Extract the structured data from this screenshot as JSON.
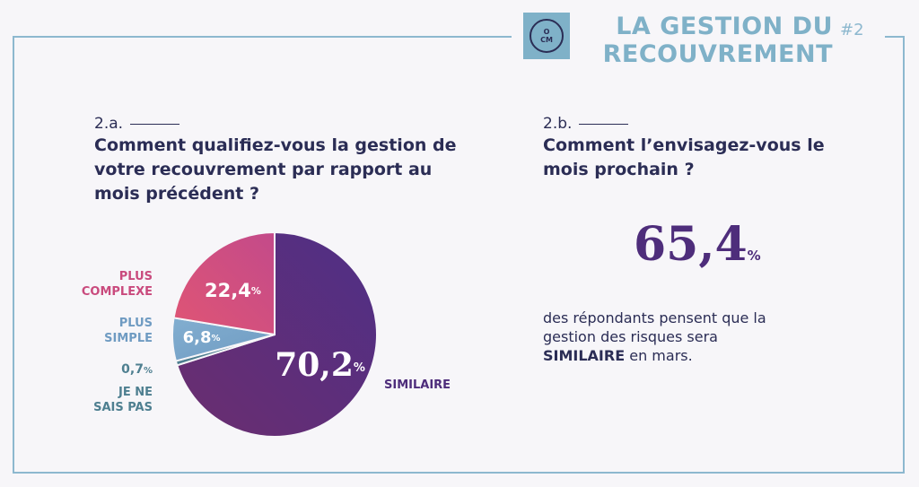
{
  "header": {
    "title_line1": "LA GESTION DU",
    "title_line2": "RECOUVREMENT",
    "issue": "#2",
    "logo_top": "O",
    "logo_bottom": "CM"
  },
  "question_a": {
    "number": "2.a.",
    "line1": "Comment qualifiez-vous la gestion de",
    "line2": "votre recouvrement par rapport au",
    "line3": "mois précédent ?"
  },
  "question_b": {
    "number": "2.b.",
    "line1": "Comment l’envisagez-vous le",
    "line2": "mois prochain ?",
    "highlight_value": "65,4",
    "highlight_unit": "%",
    "desc_line1": "des répondants pensent que la",
    "desc_line2": "gestion des risques sera",
    "desc_bold": "SIMILAIRE",
    "desc_tail": " en mars."
  },
  "chart_data": {
    "type": "pie",
    "slices": [
      {
        "label": "SIMILAIRE",
        "value": 70.2,
        "display": "70,2",
        "color": "#4e2d7b"
      },
      {
        "label": "JE NE SAIS PAS",
        "value": 0.7,
        "display": "0,7",
        "color": "#4e7f90"
      },
      {
        "label": "PLUS SIMPLE",
        "value": 6.8,
        "display": "6,8",
        "color": "#7ba7c9"
      },
      {
        "label": "PLUS COMPLEXE",
        "value": 22.4,
        "display": "22,4",
        "color": "#d0507a"
      }
    ],
    "unit": "%",
    "labels": {
      "complexe_l1": "PLUS",
      "complexe_l2": "COMPLEXE",
      "simple_l1": "PLUS",
      "simple_l2": "SIMPLE",
      "nsp_value": "0,7",
      "nsp_unit": "%",
      "nsp_l1": "JE NE",
      "nsp_l2": "SAIS PAS",
      "similaire": "SIMILAIRE"
    }
  }
}
